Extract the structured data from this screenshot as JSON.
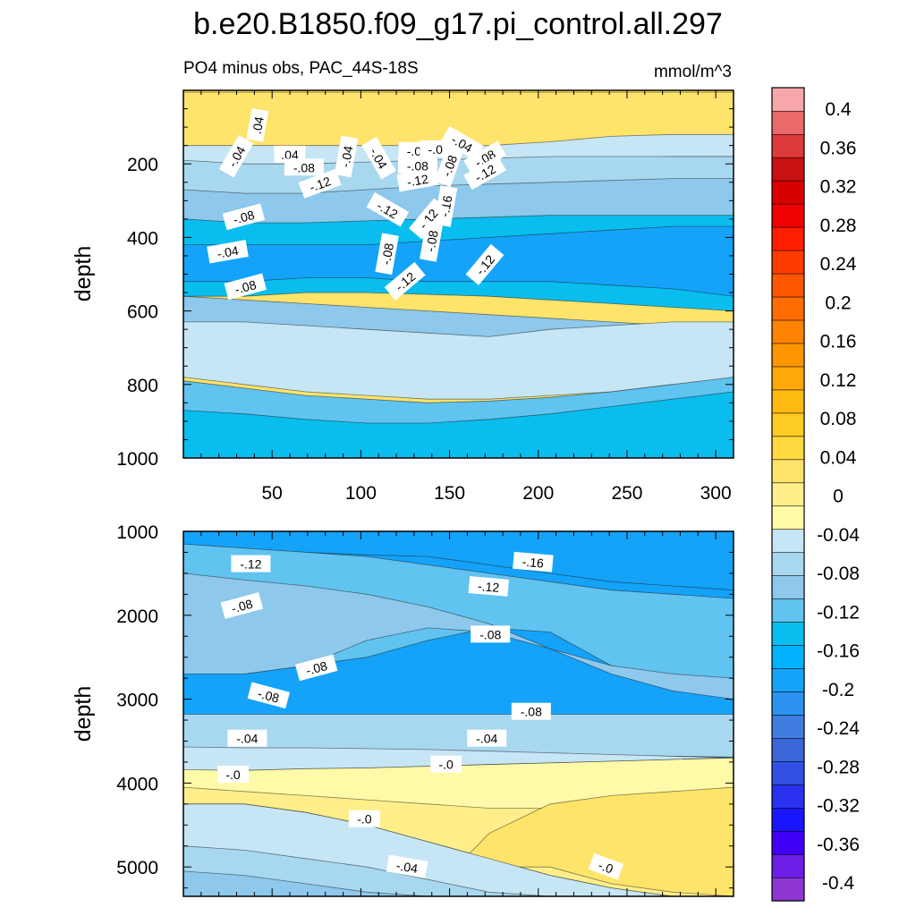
{
  "chart_data": {
    "type": "contour",
    "title": "b.e20.B1850.f09_g17.pi_control.all.297",
    "subtitle_left": "PO4 minus obs, PAC_44S-18S",
    "units": "mmol/m^3",
    "colorbar": {
      "colors": [
        "#8f37d3",
        "#6c1ee6",
        "#3f00f5",
        "#1a15ff",
        "#2a31f0",
        "#3350e4",
        "#3a66d8",
        "#3f7ee0",
        "#2b92f0",
        "#14a3f9",
        "#00b2ff",
        "#09beee",
        "#61c3ef",
        "#8ec8ec",
        "#a8d8ef",
        "#c6e6f5",
        "#fffaa8",
        "#ffee8a",
        "#ffe46b",
        "#ffd93f",
        "#ffcb25",
        "#ffba10",
        "#ffa807",
        "#ff9500",
        "#ff8200",
        "#ff6d00",
        "#ff5600",
        "#ff3b00",
        "#ff1d00",
        "#f00000",
        "#d90000",
        "#c81212",
        "#dc3a3a",
        "#ea6a6a",
        "#f7a7aa"
      ],
      "tick_labels": [
        "0.4",
        "0.36",
        "0.32",
        "0.28",
        "0.24",
        "0.2",
        "0.16",
        "0.12",
        "0.08",
        "0.04",
        "0",
        "-0.04",
        "-0.08",
        "-0.12",
        "-0.16",
        "-0.2",
        "-0.24",
        "-0.28",
        "-0.32",
        "-0.36",
        "-0.4"
      ]
    },
    "panels": [
      {
        "name": "upper",
        "ylabel": "depth",
        "xlim": [
          0,
          310
        ],
        "ylim": [
          1000,
          0
        ],
        "xticks": [
          50,
          100,
          150,
          200,
          250,
          300
        ],
        "yticks": [
          200,
          400,
          600,
          800,
          1000
        ],
        "bands": [
          {
            "top": [
              5,
              5,
              5,
              5,
              5,
              5,
              5,
              5,
              5,
              5
            ],
            "bottom": [
              195,
              195,
              190,
              180,
              170,
              160,
              150,
              145,
              140,
              140
            ],
            "color": "#ffe46b"
          },
          {
            "top": [
              150,
              150,
              150,
              150,
              150,
              150,
              140,
              125,
              120,
              120
            ],
            "bottom": [
              240,
              240,
              235,
              225,
              215,
              200,
              190,
              185,
              180,
              180
            ],
            "color": "#c6e6f5"
          },
          {
            "top": [
              190,
              200,
              200,
              195,
              190,
              185,
              180,
              180,
              180,
              180
            ],
            "bottom": [
              300,
              300,
              290,
              280,
              270,
              265,
              260,
              255,
              255,
              255
            ],
            "color": "#a8d8ef"
          },
          {
            "top": [
              270,
              280,
              280,
              270,
              260,
              255,
              250,
              245,
              240,
              240
            ],
            "bottom": [
              380,
              380,
              375,
              370,
              365,
              360,
              355,
              350,
              350,
              350
            ],
            "color": "#8ec8ec"
          },
          {
            "top": [
              350,
              360,
              360,
              355,
              350,
              345,
              340,
              340,
              340,
              340
            ],
            "bottom": [
              560,
              560,
              550,
              550,
              555,
              560,
              570,
              580,
              590,
              600
            ],
            "color": "#09beee"
          },
          {
            "top": [
              420,
              420,
              420,
              420,
              410,
              400,
              390,
              380,
              370,
              370
            ],
            "bottom": [
              520,
              520,
              510,
              510,
              520,
              520,
              520,
              530,
              540,
              560
            ],
            "color": "#14a3f9"
          },
          {
            "top": [
              560,
              570,
              580,
              590,
              600,
              610,
              620,
              630,
              640,
              650
            ],
            "bottom": [
              730,
              770,
              800,
              810,
              820,
              810,
              800,
              780,
              760,
              750
            ],
            "color": "#8ec8ec"
          },
          {
            "top": [
              630,
              630,
              640,
              650,
              660,
              670,
              650,
              640,
              630,
              630
            ],
            "bottom": [
              780,
              800,
              820,
              830,
              840,
              840,
              830,
              820,
              800,
              800
            ],
            "color": "#c6e6f5"
          },
          {
            "top": [
              790,
              810,
              830,
              840,
              850,
              845,
              835,
              820,
              800,
              780
            ],
            "bottom": [
              1000,
              1000,
              1000,
              1000,
              1000,
              1000,
              1000,
              1000,
              1000,
              1000
            ],
            "color": "#61c3ef"
          },
          {
            "top": [
              870,
              880,
              895,
              905,
              905,
              895,
              880,
              860,
              840,
              820
            ],
            "bottom": [
              1000,
              1000,
              1000,
              1000,
              1000,
              1000,
              1000,
              1000,
              1000,
              1000
            ],
            "color": "#09beee"
          }
        ],
        "contour_labels": [
          {
            "x": 42,
            "y": 95,
            "text": ".04",
            "angle": -80
          },
          {
            "x": 30,
            "y": 180,
            "text": "-.04",
            "angle": -60
          },
          {
            "x": 60,
            "y": 175,
            "text": ".04",
            "angle": 0
          },
          {
            "x": 68,
            "y": 210,
            "text": "-.08",
            "angle": 0
          },
          {
            "x": 77,
            "y": 255,
            "text": "-.12",
            "angle": -20
          },
          {
            "x": 92,
            "y": 180,
            "text": "-.04",
            "angle": -80
          },
          {
            "x": 110,
            "y": 185,
            "text": "-.04",
            "angle": 60
          },
          {
            "x": 132,
            "y": 245,
            "text": "-.12",
            "angle": -10
          },
          {
            "x": 130,
            "y": 165,
            "text": "-.0",
            "angle": 0
          },
          {
            "x": 142,
            "y": 160,
            "text": "-.0",
            "angle": 0
          },
          {
            "x": 157,
            "y": 145,
            "text": "-.04",
            "angle": 30
          },
          {
            "x": 150,
            "y": 205,
            "text": "-.08",
            "angle": -70
          },
          {
            "x": 132,
            "y": 205,
            "text": "-.08",
            "angle": 0
          },
          {
            "x": 170,
            "y": 185,
            "text": "-.08",
            "angle": -30
          },
          {
            "x": 170,
            "y": 225,
            "text": "-.12",
            "angle": -30
          },
          {
            "x": 148,
            "y": 315,
            "text": "-.16",
            "angle": -80
          },
          {
            "x": 115,
            "y": 325,
            "text": "-.12",
            "angle": 30
          },
          {
            "x": 138,
            "y": 350,
            "text": "-.12",
            "angle": -50
          },
          {
            "x": 34,
            "y": 345,
            "text": "-.08",
            "angle": -15
          },
          {
            "x": 25,
            "y": 440,
            "text": "-.04",
            "angle": -10
          },
          {
            "x": 115,
            "y": 445,
            "text": "-.08",
            "angle": -80
          },
          {
            "x": 140,
            "y": 410,
            "text": "-.08",
            "angle": -80
          },
          {
            "x": 35,
            "y": 535,
            "text": "-.08",
            "angle": -15
          },
          {
            "x": 125,
            "y": 520,
            "text": "-.12",
            "angle": -40
          },
          {
            "x": 170,
            "y": 475,
            "text": "-.12",
            "angle": -50
          }
        ]
      },
      {
        "name": "lower",
        "ylabel": "depth",
        "xlim": [
          0,
          310
        ],
        "ylim": [
          5350,
          1000
        ],
        "xticks": [
          50,
          100,
          150,
          200,
          250,
          300
        ],
        "yticks": [
          1000,
          2000,
          3000,
          4000,
          5000
        ],
        "bands": [
          {
            "top": [
              1000,
              1000,
              1000,
              1000,
              1000,
              1000,
              1000,
              1000,
              1000,
              1000
            ],
            "bottom": [
              1200,
              1230,
              1250,
              1280,
              1300,
              1400,
              1500,
              1600,
              1650,
              1700
            ],
            "color": "#14a3f9"
          },
          {
            "top": [
              1150,
              1200,
              1250,
              1300,
              1400,
              1500,
              1600,
              1700,
              1750,
              1800
            ],
            "bottom": [
              2600,
              2700,
              2600,
              2500,
              2300,
              2150,
              2200,
              2600,
              2750,
              2800
            ],
            "color": "#61c3ef"
          },
          {
            "top": [
              1500,
              1580,
              1650,
              1750,
              1900,
              2100,
              2400,
              2600,
              2700,
              2750
            ],
            "bottom": [
              2700,
              2700,
              2600,
              2300,
              2150,
              2200,
              2400,
              2700,
              2900,
              3000
            ],
            "color": "#8ec8ec"
          },
          {
            "top": [
              3180,
              3180,
              3180,
              3180,
              3180,
              3180,
              3180,
              3180,
              3180,
              3180
            ],
            "bottom": [
              3600,
              3610,
              3620,
              3630,
              3640,
              3650,
              3660,
              3670,
              3680,
              3690
            ],
            "color": "#a8d8ef"
          },
          {
            "top": [
              3570,
              3580,
              3580,
              3590,
              3600,
              3620,
              3640,
              3660,
              3680,
              3700
            ],
            "bottom": [
              3850,
              3850,
              3830,
              3820,
              3800,
              3780,
              3760,
              3740,
              3720,
              3700
            ],
            "color": "#c6e6f5"
          },
          {
            "top": [
              3840,
              3850,
              3830,
              3820,
              3800,
              3780,
              3760,
              3740,
              3720,
              3700
            ],
            "bottom": [
              4250,
              4250,
              4350,
              4500,
              4650,
              4800,
              5000,
              5100,
              5300,
              5350
            ],
            "color": "#fffaa8"
          },
          {
            "top": [
              4050,
              4100,
              4150,
              4200,
              4250,
              4300,
              4300,
              4320,
              4340,
              4350
            ],
            "bottom": [
              4250,
              4250,
              4350,
              4500,
              4700,
              4900,
              5100,
              5250,
              5350,
              5350
            ],
            "color": "#ffee8a"
          },
          {
            "top": [
              5350,
              5350,
              5350,
              5350,
              5350,
              4600,
              4250,
              4150,
              4100,
              4050
            ],
            "bottom": [
              5350,
              5350,
              5350,
              5350,
              5350,
              5000,
              5000,
              5200,
              5300,
              5350
            ],
            "color": "#ffe46b"
          },
          {
            "top": [
              4250,
              4250,
              4350,
              4500,
              4700,
              4900,
              5100,
              5250,
              5350,
              5350
            ],
            "bottom": [
              5350,
              5350,
              5350,
              5350,
              5350,
              5350,
              5350,
              5350,
              5350,
              5350
            ],
            "color": "#c6e6f5"
          },
          {
            "top": [
              4750,
              4800,
              4900,
              5000,
              5150,
              5300,
              5350,
              5350,
              5350,
              5350
            ],
            "bottom": [
              5350,
              5350,
              5350,
              5350,
              5350,
              5350,
              5350,
              5350,
              5350,
              5350
            ],
            "color": "#a8d8ef"
          },
          {
            "top": [
              5050,
              5100,
              5200,
              5300,
              5350,
              5350,
              5350,
              5350,
              5350,
              5350
            ],
            "bottom": [
              5350,
              5350,
              5350,
              5350,
              5350,
              5350,
              5350,
              5350,
              5350,
              5350
            ],
            "color": "#8ec8ec"
          }
        ],
        "contour_labels": [
          {
            "x": 38,
            "y": 1390,
            "text": "-.12",
            "angle": 0
          },
          {
            "x": 197,
            "y": 1370,
            "text": "-.16",
            "angle": 5
          },
          {
            "x": 172,
            "y": 1660,
            "text": "-.12",
            "angle": 5
          },
          {
            "x": 33,
            "y": 1890,
            "text": "-.08",
            "angle": -15
          },
          {
            "x": 173,
            "y": 2230,
            "text": "-.08",
            "angle": 0
          },
          {
            "x": 75,
            "y": 2630,
            "text": "-.08",
            "angle": -15
          },
          {
            "x": 48,
            "y": 2960,
            "text": "-.08",
            "angle": 15
          },
          {
            "x": 196,
            "y": 3150,
            "text": "-.08",
            "angle": 0
          },
          {
            "x": 36,
            "y": 3470,
            "text": "-.04",
            "angle": 0
          },
          {
            "x": 171,
            "y": 3470,
            "text": "-.04",
            "angle": 0
          },
          {
            "x": 148,
            "y": 3780,
            "text": "-.0",
            "angle": 0
          },
          {
            "x": 28,
            "y": 3900,
            "text": "-.0",
            "angle": 0
          },
          {
            "x": 102,
            "y": 4430,
            "text": "-.0",
            "angle": 0
          },
          {
            "x": 126,
            "y": 5000,
            "text": "-.04",
            "angle": 10
          },
          {
            "x": 238,
            "y": 5000,
            "text": "-.0",
            "angle": 20
          }
        ]
      }
    ]
  }
}
